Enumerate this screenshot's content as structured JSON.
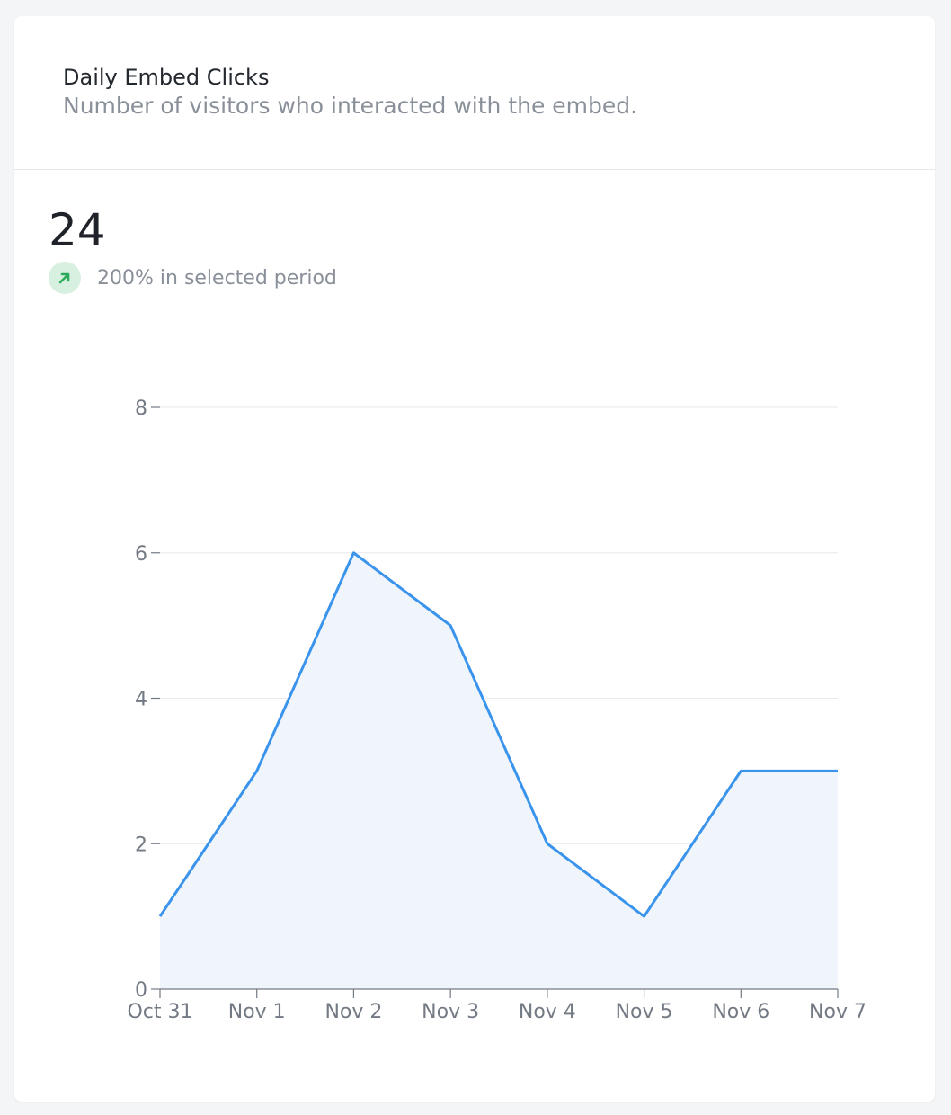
{
  "card": {
    "title": "Daily Embed Clicks",
    "subtitle": "Number of visitors who interacted with the embed."
  },
  "metric": {
    "value": "24",
    "trend_text": "200% in selected period",
    "trend_icon": "arrow-up-right-icon",
    "trend_color": "#2eaa5c"
  },
  "chart_data": {
    "type": "area",
    "categories": [
      "Oct 31",
      "Nov 1",
      "Nov 2",
      "Nov 3",
      "Nov 4",
      "Nov 5",
      "Nov 6",
      "Nov 7"
    ],
    "series": [
      {
        "values": [
          1,
          3,
          6,
          5,
          2,
          1,
          3,
          3
        ]
      }
    ],
    "yticks": [
      0,
      2,
      4,
      6,
      8
    ],
    "ylim": [
      0,
      8
    ],
    "grid": true,
    "line_color": "#3b94ec",
    "fill_color": "#f0f5fc"
  }
}
